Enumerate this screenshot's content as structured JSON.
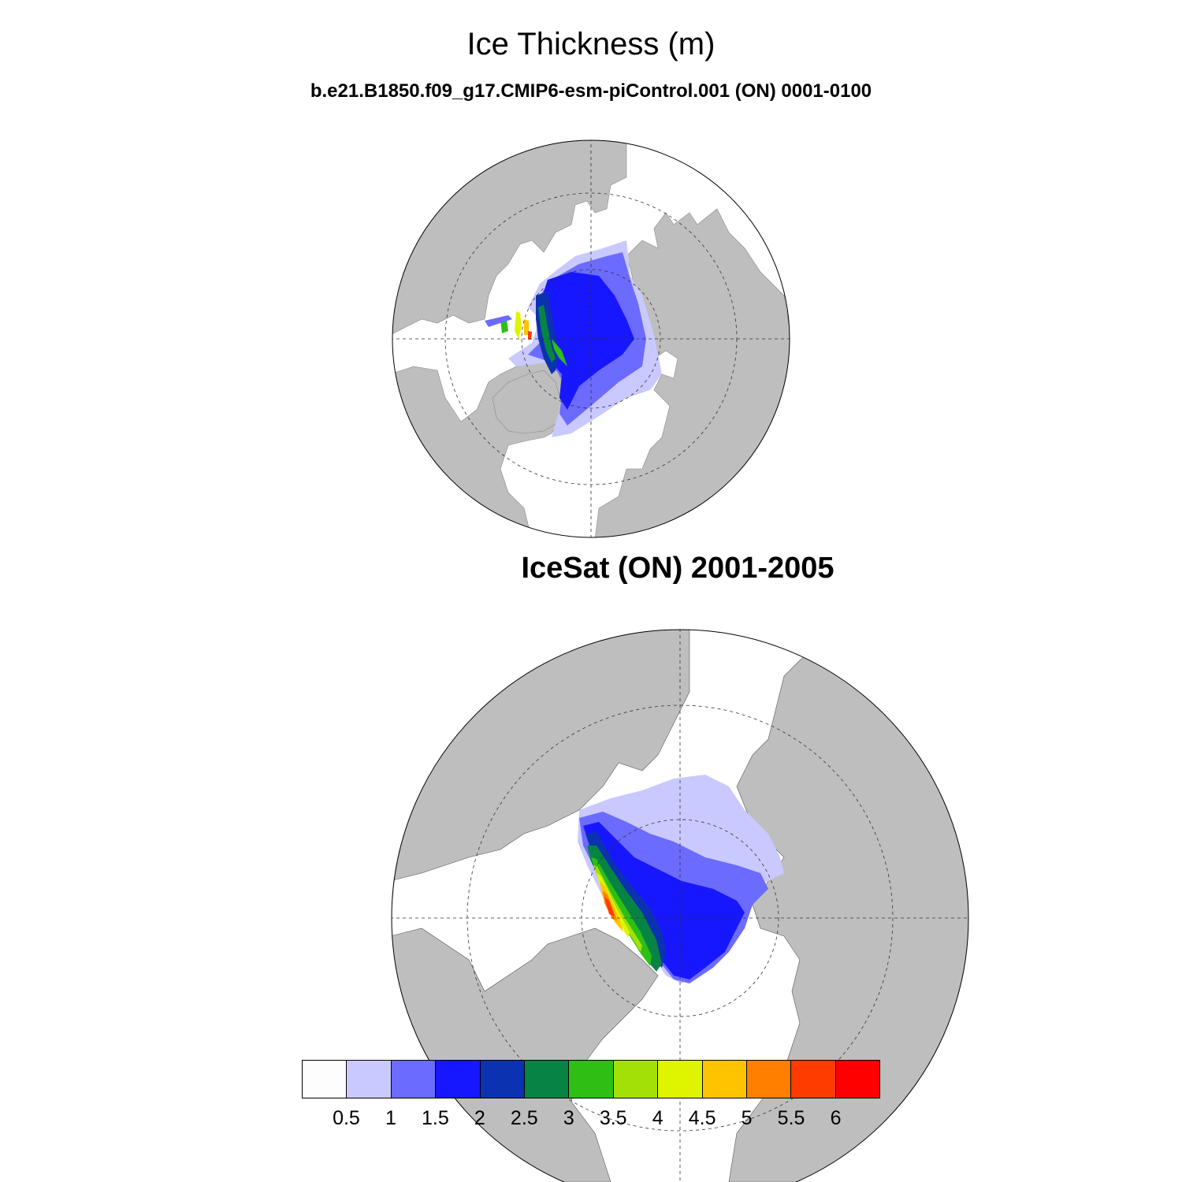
{
  "header": {
    "title": "Ice Thickness (m)",
    "case": "b.e21.B1850.f09_g17.CMIP6-esm-piControl.001 (ON) 0001-0100"
  },
  "panels": [
    {
      "id": "model",
      "title": ""
    },
    {
      "id": "obs",
      "title": "IceSat (ON) 2001-2005"
    }
  ],
  "colors": {
    "land": "#bebebe",
    "ocean": "#ffffff",
    "levels": [
      "#fdfdfd",
      "#c9c9ff",
      "#6b6bff",
      "#1717ff",
      "#0b32b0",
      "#078443",
      "#2dbf13",
      "#a3e008",
      "#dff500",
      "#ffc400",
      "#ff7f00",
      "#ff3c00",
      "#ff0000"
    ]
  },
  "colorbar": {
    "labels": [
      "0.5",
      "1",
      "1.5",
      "2",
      "2.5",
      "3",
      "3.5",
      "4",
      "4.5",
      "5",
      "5.5",
      "6"
    ]
  }
}
